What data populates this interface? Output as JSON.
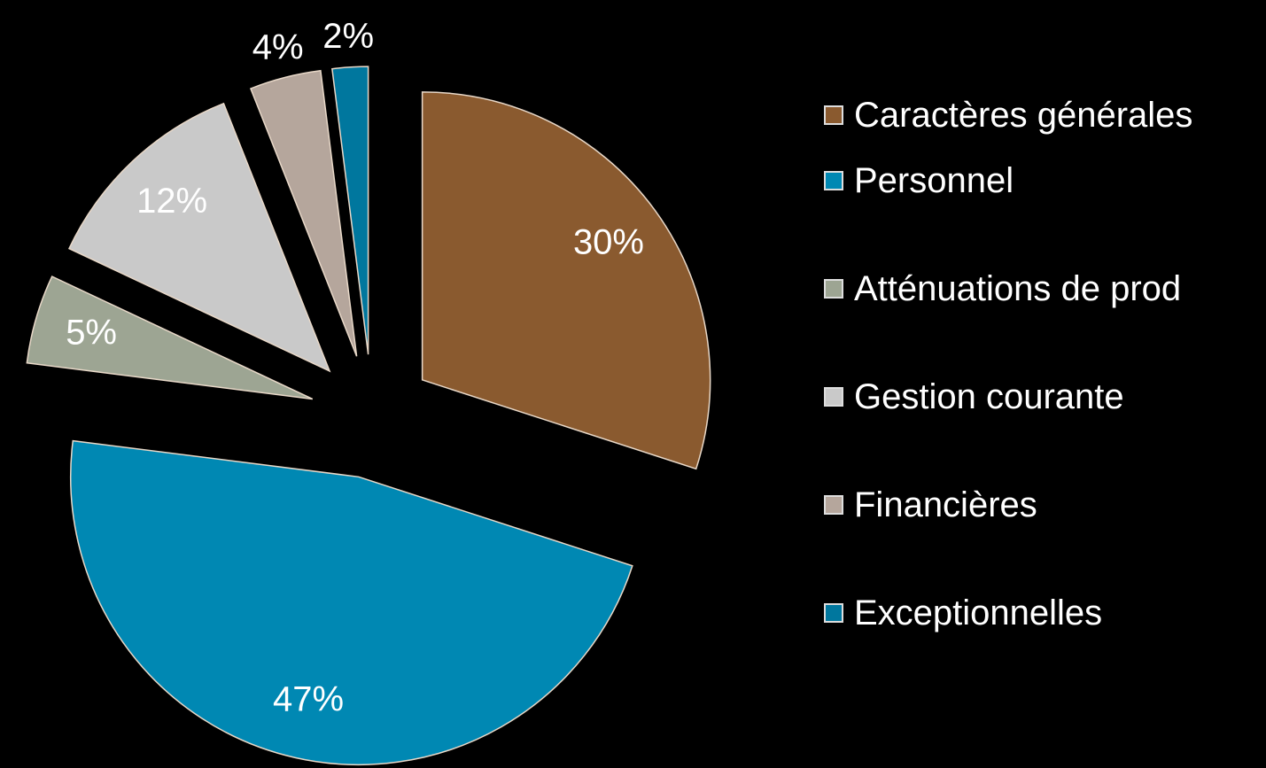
{
  "chart_data": {
    "type": "pie",
    "categories": [
      "Caractères générales",
      "Personnel",
      "Atténuations de prod",
      "Gestion courante",
      "Financières",
      "Exceptionnelles"
    ],
    "values": [
      30,
      47,
      5,
      12,
      4,
      2
    ],
    "value_labels": [
      "30%",
      "47%",
      "5%",
      "12%",
      "4%",
      "2%"
    ],
    "colors": [
      "#8a5a2f",
      "#0088b3",
      "#9da593",
      "#c9c9c9",
      "#b5a69c",
      "#00779e"
    ],
    "legend": "right"
  }
}
